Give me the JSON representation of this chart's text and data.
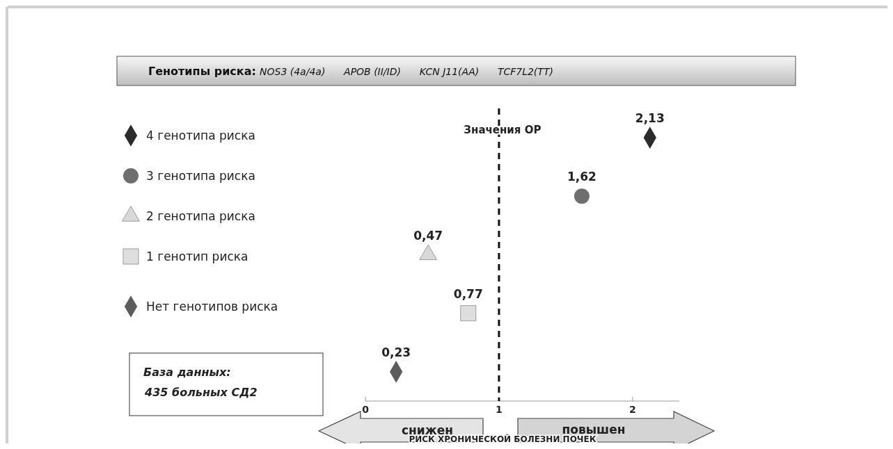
{
  "chart_data": {
    "type": "scatter",
    "orientation": "horizontal",
    "title": "Генотипы риска:",
    "subtitle": "NOS3 (4a/4a)      APOB (II/ID)      KCN J11(AA)      TCF7L2(TT)",
    "xlabel": "РИСК ХРОНИЧЕСКОЙ БОЛЕЗНИ ПОЧЕК",
    "categories": [
      null,
      null,
      null,
      null,
      null
    ],
    "xlim": [
      0,
      2.35
    ],
    "xticks": [
      0,
      1,
      2
    ],
    "legend": "left",
    "series": [
      {
        "name": "4 генотипа риска",
        "color": "#2b2b2b",
        "marker": "diamond",
        "values": [
          2.13,
          null,
          null,
          null,
          null
        ],
        "value_labels": [
          "2,13",
          null,
          null,
          null,
          null
        ]
      },
      {
        "name": "3 генотипа риска",
        "color": "#6e6e6e",
        "marker": "circle",
        "values": [
          null,
          1.62,
          null,
          null,
          null
        ],
        "value_labels": [
          null,
          "1,62",
          null,
          null,
          null
        ]
      },
      {
        "name": "2 генотипа риска",
        "color": "#d9d9d9",
        "marker": "triangle",
        "values": [
          null,
          null,
          0.47,
          null,
          null
        ],
        "value_labels": [
          null,
          null,
          "0,47",
          null,
          null
        ]
      },
      {
        "name": "1 генотип риска",
        "color": "#dedede",
        "marker": "square",
        "values": [
          null,
          null,
          null,
          0.77,
          null
        ],
        "value_labels": [
          null,
          null,
          null,
          "0,77",
          null
        ]
      },
      {
        "name": "Нет генотипов риска",
        "color": "#5c5c5c",
        "marker": "diamond",
        "values": [
          null,
          null,
          null,
          null,
          0.23
        ],
        "value_labels": [
          null,
          null,
          null,
          null,
          "0,23"
        ]
      }
    ],
    "ref_lines": [
      {
        "axis": "x",
        "value": 1,
        "label": "Значения  ОР",
        "line_style": "dashed",
        "color": "#111111"
      }
    ],
    "annotations": [
      "База данных:",
      "435 больных СД2",
      "снижен",
      "повышен"
    ]
  }
}
